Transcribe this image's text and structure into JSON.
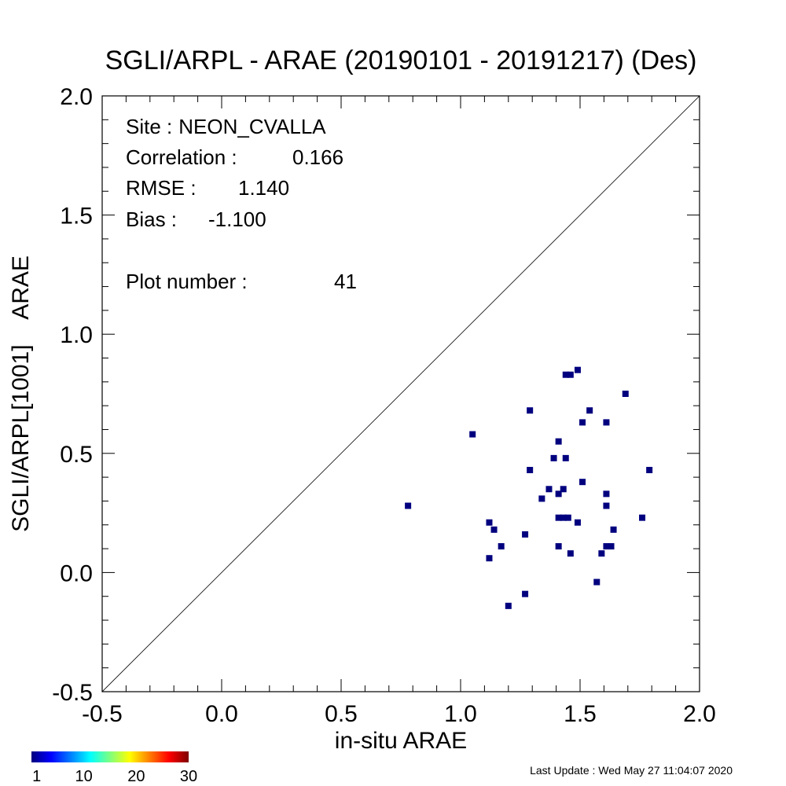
{
  "chart_data": {
    "type": "scatter",
    "title": "SGLI/ARPL - ARAE (20190101 - 20191217) (Des)",
    "xlabel": "in-situ ARAE",
    "ylabel": "SGLI/ARPL[1001]    ARAE",
    "xlim": [
      -0.5,
      2.0
    ],
    "ylim": [
      -0.5,
      2.0
    ],
    "xticks": [
      "-0.5",
      "0.0",
      "0.5",
      "1.0",
      "1.5",
      "2.0"
    ],
    "yticks": [
      "-0.5",
      "0.0",
      "0.5",
      "1.0",
      "1.5",
      "2.0"
    ],
    "reference_line": "1:1",
    "grid": false,
    "marker_color": "#00007f",
    "stats": {
      "site_label": "Site :",
      "site": "NEON_CVALLA",
      "correlation_label": "Correlation :",
      "correlation": "0.166",
      "rmse_label": "RMSE :",
      "rmse": "1.140",
      "bias_label": "Bias :",
      "bias": "-1.100",
      "plot_number_label": "Plot number :",
      "plot_number": "41"
    },
    "points": [
      {
        "x": 0.78,
        "y": 0.28
      },
      {
        "x": 1.05,
        "y": 0.58
      },
      {
        "x": 1.12,
        "y": 0.21
      },
      {
        "x": 1.14,
        "y": 0.18
      },
      {
        "x": 1.17,
        "y": 0.11
      },
      {
        "x": 1.12,
        "y": 0.06
      },
      {
        "x": 1.2,
        "y": -0.14
      },
      {
        "x": 1.27,
        "y": -0.09
      },
      {
        "x": 1.27,
        "y": 0.16
      },
      {
        "x": 1.29,
        "y": 0.43
      },
      {
        "x": 1.29,
        "y": 0.68
      },
      {
        "x": 1.34,
        "y": 0.31
      },
      {
        "x": 1.37,
        "y": 0.35
      },
      {
        "x": 1.39,
        "y": 0.48
      },
      {
        "x": 1.41,
        "y": 0.55
      },
      {
        "x": 1.41,
        "y": 0.33
      },
      {
        "x": 1.43,
        "y": 0.35
      },
      {
        "x": 1.44,
        "y": 0.48
      },
      {
        "x": 1.41,
        "y": 0.23
      },
      {
        "x": 1.43,
        "y": 0.23
      },
      {
        "x": 1.45,
        "y": 0.23
      },
      {
        "x": 1.41,
        "y": 0.11
      },
      {
        "x": 1.46,
        "y": 0.08
      },
      {
        "x": 1.44,
        "y": 0.83
      },
      {
        "x": 1.46,
        "y": 0.83
      },
      {
        "x": 1.49,
        "y": 0.85
      },
      {
        "x": 1.49,
        "y": 0.21
      },
      {
        "x": 1.51,
        "y": 0.38
      },
      {
        "x": 1.51,
        "y": 0.63
      },
      {
        "x": 1.54,
        "y": 0.68
      },
      {
        "x": 1.57,
        "y": -0.04
      },
      {
        "x": 1.59,
        "y": 0.08
      },
      {
        "x": 1.61,
        "y": 0.11
      },
      {
        "x": 1.63,
        "y": 0.11
      },
      {
        "x": 1.64,
        "y": 0.18
      },
      {
        "x": 1.61,
        "y": 0.28
      },
      {
        "x": 1.61,
        "y": 0.33
      },
      {
        "x": 1.61,
        "y": 0.63
      },
      {
        "x": 1.69,
        "y": 0.75
      },
      {
        "x": 1.76,
        "y": 0.23
      },
      {
        "x": 1.79,
        "y": 0.43
      }
    ],
    "colorbar": {
      "ticks": [
        "1",
        "10",
        "20",
        "30"
      ],
      "colors": [
        "#00007f",
        "#0000ff",
        "#007fff",
        "#00ffff",
        "#7fff7f",
        "#ffff00",
        "#ff7f00",
        "#ff0000",
        "#7f0000"
      ]
    }
  },
  "footer": {
    "last_update": "Last Update : Wed May 27 11:04:07 2020"
  }
}
